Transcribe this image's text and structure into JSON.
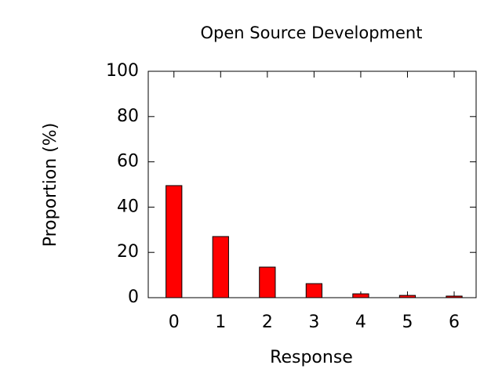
{
  "chart_data": {
    "type": "bar",
    "title": "Open Source Development",
    "x_label": "Response",
    "y_label": "Proportion (%)",
    "x": [
      0,
      1,
      2,
      3,
      4,
      5,
      6
    ],
    "values": [
      49.5,
      27,
      13.5,
      6.2,
      1.7,
      1.0,
      0.7
    ],
    "color": "#ff0000",
    "xlim": [
      -0.55,
      6.47
    ],
    "xticks": [
      0,
      1,
      2,
      3,
      4,
      5,
      6
    ],
    "ylim": [
      0,
      100
    ],
    "yticks": [
      0,
      20,
      40,
      60,
      80,
      100
    ]
  }
}
